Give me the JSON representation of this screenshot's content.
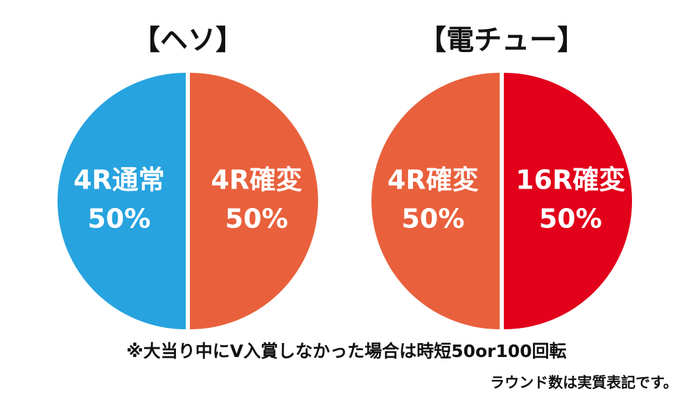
{
  "chart_data": [
    {
      "type": "pie",
      "title": "【ヘソ】",
      "slices": [
        {
          "label": "4R通常",
          "value": 50,
          "value_text": "50%",
          "color": "#27a3df"
        },
        {
          "label": "4R確変",
          "value": 50,
          "value_text": "50%",
          "color": "#e9603c"
        }
      ]
    },
    {
      "type": "pie",
      "title": "【電チュー】",
      "slices": [
        {
          "label": "4R確変",
          "value": 50,
          "value_text": "50%",
          "color": "#e9603c"
        },
        {
          "label": "16R確変",
          "value": 50,
          "value_text": "50%",
          "color": "#e2001a"
        }
      ]
    }
  ],
  "notes": {
    "main": "※大当り中にV入賞しなかった場合は時短50or100回転",
    "sub": "ラウンド数は実質表記です。"
  }
}
